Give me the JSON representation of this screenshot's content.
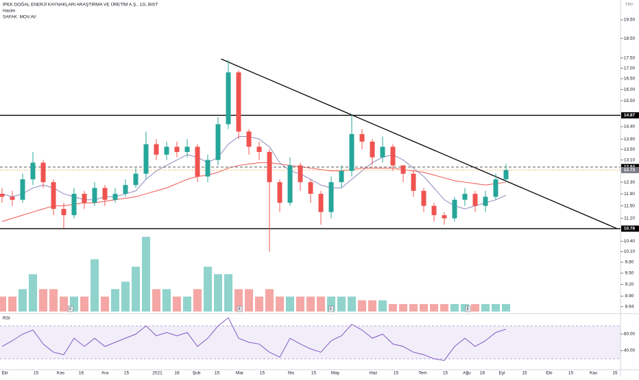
{
  "chart_data": {
    "type": "candlestick",
    "title": "İPEK DOĞAL ENERJİ KAYNAKLARI ARAŞTIRMA VE ÜRETİM A.Ş., 1G, BIST",
    "volume_label": "Hacim",
    "ma_label": "SAFAK  MOV.AV",
    "rsi_label": "RSI",
    "currency": "TRY",
    "log_scale": true,
    "up_color": "#26a69a",
    "down_color": "#ef5350",
    "volume_up_color": "#8fd3cc",
    "volume_down_color": "#f4a7a5",
    "ma1_color": "#8e86b8",
    "ma2_color": "#ef5350",
    "rsi_color": "#7e57c2",
    "x": [
      0,
      1,
      2,
      3,
      4,
      5,
      6,
      7,
      8,
      9,
      10,
      11,
      12,
      13,
      14,
      15,
      16,
      17,
      18,
      19,
      20,
      21,
      22,
      23,
      24,
      25,
      26,
      27,
      28,
      29,
      30,
      31,
      32,
      33,
      34,
      35,
      36,
      37,
      38,
      39,
      40,
      41,
      42,
      43,
      44,
      45,
      46,
      47,
      48,
      49
    ],
    "open": [
      11.9,
      11.8,
      11.7,
      12.4,
      13.0,
      12.3,
      11.4,
      11.2,
      11.9,
      11.6,
      12.1,
      11.7,
      11.9,
      12.2,
      12.6,
      13.7,
      13.3,
      13.6,
      13.4,
      13.6,
      12.5,
      13.1,
      14.5,
      16.8,
      14.2,
      13.6,
      13.4,
      12.3,
      11.6,
      12.9,
      12.3,
      11.9,
      11.3,
      12.3,
      12.7,
      14.1,
      13.8,
      13.2,
      13.6,
      12.9,
      12.6,
      12.0,
      11.5,
      11.2,
      11.1,
      11.7,
      11.9,
      11.5,
      11.8,
      12.4
    ],
    "high": [
      12.1,
      12.0,
      12.6,
      13.4,
      13.1,
      12.4,
      11.6,
      12.1,
      12.0,
      12.3,
      12.2,
      12.1,
      12.4,
      12.8,
      14.2,
      13.9,
      13.8,
      13.8,
      13.9,
      13.7,
      13.3,
      14.8,
      17.4,
      16.9,
      14.3,
      13.8,
      13.5,
      12.4,
      13.2,
      13.0,
      12.4,
      12.0,
      12.5,
      12.9,
      14.9,
      14.3,
      13.9,
      14.0,
      13.7,
      12.9,
      12.7,
      12.1,
      11.6,
      11.3,
      11.8,
      12.1,
      12.0,
      12.0,
      12.6,
      12.95
    ],
    "low": [
      11.6,
      11.5,
      11.6,
      12.2,
      12.1,
      11.2,
      10.8,
      11.1,
      11.4,
      11.5,
      11.5,
      11.6,
      11.8,
      12.1,
      12.4,
      13.1,
      13.1,
      13.2,
      13.2,
      12.3,
      12.3,
      12.9,
      14.3,
      13.9,
      13.3,
      13.1,
      10.1,
      11.3,
      11.5,
      12.0,
      11.6,
      10.9,
      11.1,
      12.1,
      12.5,
      13.5,
      12.9,
      13.0,
      12.7,
      12.3,
      11.8,
      11.3,
      11.0,
      10.9,
      11.0,
      11.5,
      11.3,
      11.3,
      11.7,
      12.3
    ],
    "close": [
      11.8,
      11.7,
      12.4,
      13.0,
      12.3,
      11.4,
      11.2,
      11.9,
      11.6,
      12.1,
      11.7,
      11.9,
      12.2,
      12.6,
      13.7,
      13.3,
      13.6,
      13.4,
      13.6,
      12.5,
      13.1,
      14.5,
      16.8,
      14.2,
      13.6,
      13.4,
      12.3,
      11.6,
      12.9,
      12.3,
      11.9,
      11.3,
      12.3,
      12.7,
      14.1,
      13.8,
      13.2,
      13.6,
      12.9,
      12.6,
      12.0,
      11.5,
      11.2,
      11.1,
      11.7,
      11.9,
      11.5,
      11.8,
      12.4,
      12.73
    ],
    "volume": [
      2,
      2,
      3,
      5,
      3,
      3,
      2,
      2,
      2,
      7,
      2,
      3,
      4,
      6,
      10,
      3,
      3,
      2,
      2,
      3,
      6,
      5,
      5,
      3,
      3,
      2,
      3,
      2,
      2,
      2,
      2,
      2,
      2,
      2,
      2,
      1.5,
      1.5,
      1.5,
      1,
      1,
      1,
      1,
      1,
      1,
      1,
      1,
      1,
      1,
      1,
      1
    ],
    "ma1": [
      11.9,
      11.8,
      11.9,
      12.1,
      12.2,
      12.1,
      11.9,
      11.8,
      11.7,
      11.7,
      11.8,
      11.8,
      11.9,
      12.0,
      12.4,
      12.7,
      12.9,
      13.1,
      13.3,
      13.2,
      13.0,
      13.2,
      13.7,
      14.0,
      14.0,
      13.9,
      13.6,
      13.0,
      12.7,
      12.6,
      12.4,
      12.2,
      12.1,
      12.1,
      12.4,
      12.7,
      13.0,
      13.2,
      13.3,
      13.1,
      12.8,
      12.5,
      12.1,
      11.7,
      11.5,
      11.4,
      11.5,
      11.6,
      11.7,
      11.85
    ],
    "ma2": [
      11.0,
      11.1,
      11.2,
      11.3,
      11.4,
      11.5,
      11.5,
      11.55,
      11.6,
      11.6,
      11.65,
      11.7,
      11.75,
      11.8,
      11.9,
      12.0,
      12.1,
      12.25,
      12.4,
      12.5,
      12.55,
      12.65,
      12.8,
      12.9,
      12.95,
      13.0,
      13.0,
      12.95,
      12.9,
      12.85,
      12.8,
      12.75,
      12.7,
      12.7,
      12.75,
      12.8,
      12.8,
      12.8,
      12.8,
      12.75,
      12.7,
      12.65,
      12.55,
      12.45,
      12.35,
      12.3,
      12.25,
      12.2,
      12.25,
      12.3
    ],
    "rsi": [
      45,
      52,
      60,
      65,
      48,
      38,
      35,
      55,
      45,
      55,
      45,
      50,
      55,
      60,
      70,
      58,
      62,
      58,
      62,
      45,
      55,
      70,
      80,
      55,
      50,
      48,
      38,
      32,
      55,
      48,
      42,
      38,
      52,
      58,
      72,
      65,
      55,
      60,
      48,
      45,
      38,
      35,
      30,
      28,
      45,
      55,
      45,
      52,
      62,
      66
    ],
    "xlim": [
      -0.2,
      60.13
    ],
    "ylim": [
      8.47,
      20.63
    ],
    "volume_lim": [
      0,
      11
    ],
    "rsi_lim": [
      16.7,
      85
    ],
    "rsi_band": [
      30,
      70
    ],
    "yticks": [
      {
        "value": 19.5,
        "label": "19.50"
      },
      {
        "value": 18.5,
        "label": "18.50"
      },
      {
        "value": 17.5,
        "label": "17.50"
      },
      {
        "value": 17,
        "label": "17.00"
      },
      {
        "value": 16.5,
        "label": "16.50"
      },
      {
        "value": 16,
        "label": "16.00"
      },
      {
        "value": 15.5,
        "label": "15.50"
      },
      {
        "value": 14.4,
        "label": "14.40"
      },
      {
        "value": 13.9,
        "label": "13.90"
      },
      {
        "value": 13.5,
        "label": "13.50"
      },
      {
        "value": 13.1,
        "label": "13.10"
      },
      {
        "value": 12.3,
        "label": "12.30"
      },
      {
        "value": 11.9,
        "label": "11.90"
      },
      {
        "value": 11.5,
        "label": "11.50"
      },
      {
        "value": 11.1,
        "label": "11.10"
      },
      {
        "value": 10.4,
        "label": "10.40"
      },
      {
        "value": 10.1,
        "label": "10.10"
      },
      {
        "value": 9.8,
        "label": "9.80"
      },
      {
        "value": 9.5,
        "label": "9.50"
      },
      {
        "value": 9.2,
        "label": "9.20"
      },
      {
        "value": 8.9,
        "label": "8.90"
      },
      {
        "value": 8.64,
        "label": "8.64"
      }
    ],
    "rsi_ticks": [
      {
        "value": 60,
        "label": "60.00"
      },
      {
        "value": 40,
        "label": "40.00"
      }
    ],
    "xticks": [
      {
        "value": 0.27,
        "label": "Eki"
      },
      {
        "value": 3.3,
        "label": "15"
      },
      {
        "value": 5.7,
        "label": "Kas"
      },
      {
        "value": 7.7,
        "label": "16"
      },
      {
        "value": 10,
        "label": "Ara"
      },
      {
        "value": 12.1,
        "label": "15"
      },
      {
        "value": 15.1,
        "label": "2021"
      },
      {
        "value": 17,
        "label": "18"
      },
      {
        "value": 18.9,
        "label": "Şub"
      },
      {
        "value": 20.9,
        "label": "15"
      },
      {
        "value": 23.1,
        "label": "Mar"
      },
      {
        "value": 25.3,
        "label": "15"
      },
      {
        "value": 28.1,
        "label": "Nis"
      },
      {
        "value": 30.3,
        "label": "15"
      },
      {
        "value": 32.4,
        "label": "May"
      },
      {
        "value": 36.1,
        "label": "Haz"
      },
      {
        "value": 38.3,
        "label": "15"
      },
      {
        "value": 40.9,
        "label": "Tem"
      },
      {
        "value": 43.1,
        "label": "15"
      },
      {
        "value": 45.2,
        "label": "Ağu"
      },
      {
        "value": 46.7,
        "label": "16"
      },
      {
        "value": 48.6,
        "label": "Eyl"
      },
      {
        "value": 50.8,
        "label": "15"
      },
      {
        "value": 53.2,
        "label": "Eki"
      },
      {
        "value": 55.3,
        "label": "15"
      },
      {
        "value": 57.5,
        "label": "Kas"
      },
      {
        "value": 59.6,
        "label": "15"
      }
    ],
    "levels": [
      {
        "value": 14.87,
        "line": "solid",
        "color": "#000000",
        "box": "#000000"
      },
      {
        "value": 12.84,
        "line": "dashed",
        "color": "#555555",
        "box": "#000000"
      },
      {
        "value": 12.73,
        "line": "dotted",
        "color": "#f5a442",
        "box": "#787b86"
      },
      {
        "value": 10.78,
        "line": "solid",
        "color": "#000000",
        "box": "#000000"
      }
    ],
    "trendline": {
      "x": [
        21.3,
        59.8
      ],
      "y": [
        17.45,
        10.78
      ]
    },
    "earnings": {
      "x": [
        6.67,
        23.1,
        32,
        45.3
      ],
      "labels": [
        "E",
        "E",
        "E",
        "E"
      ]
    }
  }
}
